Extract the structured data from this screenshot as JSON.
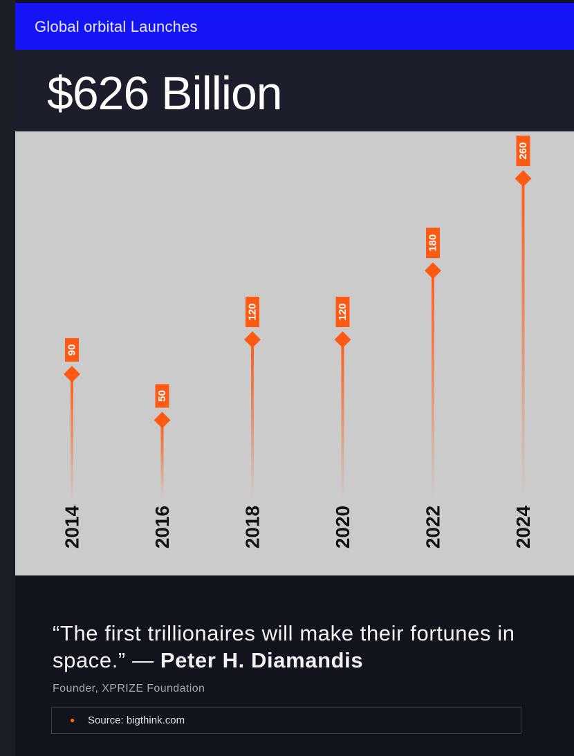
{
  "header": {
    "title": "Global orbital Launches"
  },
  "hero": {
    "value": "$626 Billion"
  },
  "chart_data": {
    "type": "scatter",
    "style": "lollipop",
    "categories": [
      "2014",
      "2016",
      "2018",
      "2020",
      "2022",
      "2024"
    ],
    "values": [
      90,
      50,
      120,
      120,
      180,
      260
    ],
    "value_labels": [
      "90",
      "50",
      "120",
      "120",
      "180",
      "260"
    ],
    "title": "",
    "xlabel": "",
    "ylabel": "",
    "grid": false,
    "colors": {
      "marker": "#ff5a14",
      "label_bg": "#ff5a14",
      "label_text": "#ffffff",
      "axis_text": "#111111",
      "background": "#cbcbcb"
    }
  },
  "quote": {
    "text": "“The first trillionaires will make their fortunes in space.” — ",
    "author": "Peter H. Diamandis",
    "role": "Founder, XPRIZE Foundation"
  },
  "source": {
    "bullet_icon": "bullet-dot-icon",
    "text": "Source: bigthink.com"
  }
}
